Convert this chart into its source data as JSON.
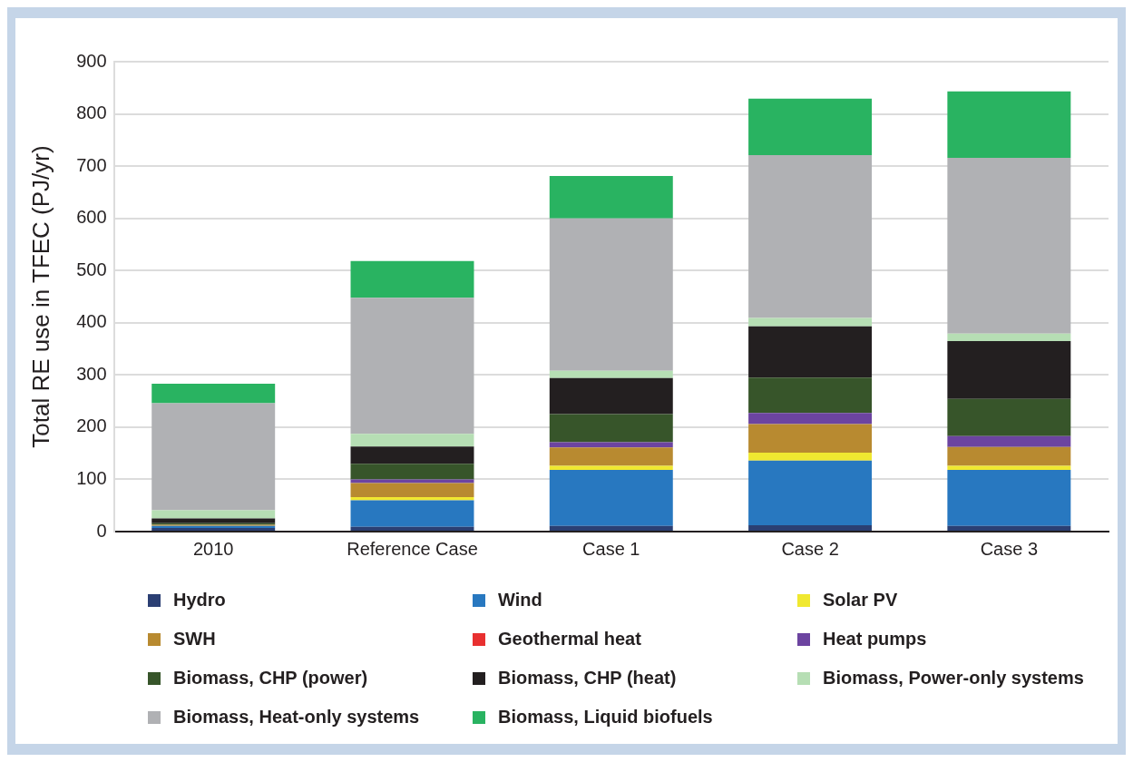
{
  "chart_data": {
    "type": "bar",
    "stacked": true,
    "ylabel": "Total RE use in TFEC (PJ/yr)",
    "categories": [
      "2010",
      "Reference Case",
      "Case 1",
      "Case 2",
      "Case 3"
    ],
    "ylim": [
      0,
      900
    ],
    "yticks": [
      0,
      100,
      200,
      300,
      400,
      500,
      600,
      700,
      800,
      900
    ],
    "grid": "y",
    "legend": "bottom",
    "series": [
      {
        "name": "Hydro",
        "color": "#2b3f73",
        "values": [
          7,
          9,
          11,
          12,
          11
        ]
      },
      {
        "name": "Wind",
        "color": "#2878c0",
        "values": [
          4,
          51,
          107,
          124,
          107
        ]
      },
      {
        "name": "Solar PV",
        "color": "#f0e830",
        "values": [
          0,
          6,
          8,
          15,
          8
        ]
      },
      {
        "name": "SWH",
        "color": "#b88a30",
        "values": [
          2,
          27,
          35,
          55,
          36
        ]
      },
      {
        "name": "Geothermal heat",
        "color": "#e83030",
        "values": [
          0,
          0,
          0,
          0,
          0
        ]
      },
      {
        "name": "Heat pumps",
        "color": "#6c44a0",
        "values": [
          0,
          7,
          10,
          21,
          21
        ]
      },
      {
        "name": "Biomass, CHP (power)",
        "color": "#37552a",
        "values": [
          3,
          30,
          54,
          68,
          71
        ]
      },
      {
        "name": "Biomass, CHP (heat)",
        "color": "#231f20",
        "values": [
          9,
          33,
          69,
          98,
          111
        ]
      },
      {
        "name": "Biomass, Power-only systems",
        "color": "#b6deb4",
        "values": [
          16,
          24,
          14,
          16,
          14
        ]
      },
      {
        "name": "Biomass, Heat-only systems",
        "color": "#b0b1b4",
        "values": [
          205,
          261,
          292,
          312,
          337
        ]
      },
      {
        "name": "Biomass, Liquid biofuels",
        "color": "#29b361",
        "values": [
          37,
          70,
          81,
          108,
          127
        ]
      }
    ]
  }
}
